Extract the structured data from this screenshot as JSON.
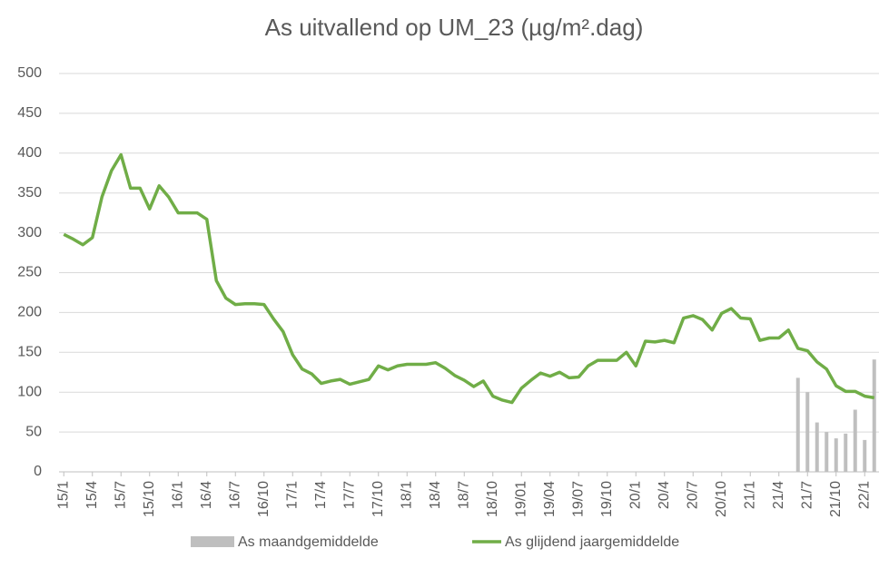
{
  "chart_data": {
    "type": "bar-line",
    "title": "As uitvallend op UM_23 (µg/m².dag)",
    "categories": [
      "15/1",
      null,
      null,
      "15/4",
      null,
      null,
      "15/7",
      null,
      null,
      "15/10",
      null,
      null,
      "16/1",
      null,
      null,
      "16/4",
      null,
      null,
      "16/7",
      null,
      null,
      "16/10",
      null,
      null,
      "17/1",
      null,
      null,
      "17/4",
      null,
      null,
      "17/7",
      null,
      null,
      "17/10",
      null,
      null,
      "18/1",
      null,
      null,
      "18/4",
      null,
      null,
      "18/7",
      null,
      null,
      "18/10",
      null,
      null,
      "19/01",
      null,
      null,
      "19/04",
      null,
      null,
      "19/07",
      null,
      null,
      "19/10",
      null,
      null,
      "20/1",
      null,
      null,
      "20/4",
      null,
      null,
      "20/7",
      null,
      null,
      "20/10",
      null,
      null,
      "21/1",
      null,
      null,
      "21/4",
      null,
      null,
      "21/7",
      null,
      null,
      "21/10",
      null,
      null,
      "22/1",
      null
    ],
    "series": [
      {
        "name": "As maandgemiddelde",
        "kind": "bar",
        "color": "#bfbfbf",
        "values": [
          null,
          null,
          null,
          null,
          null,
          null,
          null,
          null,
          null,
          null,
          null,
          null,
          null,
          null,
          null,
          null,
          null,
          null,
          null,
          null,
          null,
          null,
          null,
          null,
          null,
          null,
          null,
          null,
          null,
          null,
          null,
          null,
          null,
          null,
          null,
          null,
          null,
          null,
          null,
          null,
          null,
          null,
          null,
          null,
          null,
          null,
          null,
          null,
          null,
          null,
          null,
          null,
          null,
          null,
          null,
          null,
          null,
          null,
          null,
          null,
          null,
          null,
          null,
          null,
          null,
          null,
          null,
          null,
          null,
          null,
          null,
          null,
          null,
          null,
          null,
          null,
          null,
          118,
          100,
          62,
          50,
          42,
          48,
          78,
          40,
          141
        ]
      },
      {
        "name": "As glijdend jaargemiddelde",
        "kind": "line",
        "color": "#70ad47",
        "values": [
          298,
          292,
          285,
          294,
          345,
          378,
          398,
          356,
          356,
          330,
          359,
          345,
          325,
          325,
          325,
          317,
          240,
          218,
          210,
          211,
          211,
          210,
          192,
          176,
          147,
          129,
          123,
          111,
          114,
          116,
          110,
          113,
          116,
          133,
          128,
          133,
          135,
          135,
          135,
          137,
          130,
          121,
          115,
          107,
          114,
          95,
          90,
          87,
          105,
          115,
          124,
          120,
          125,
          118,
          119,
          133,
          140,
          140,
          140,
          150,
          133,
          164,
          163,
          165,
          162,
          193,
          196,
          191,
          178,
          199,
          205,
          193,
          192,
          165,
          168,
          168,
          178,
          155,
          152,
          138,
          129,
          108,
          101,
          101,
          95,
          93
        ]
      }
    ],
    "ylim": [
      0,
      500
    ],
    "yticks": [
      0,
      50,
      100,
      150,
      200,
      250,
      300,
      350,
      400,
      450,
      500
    ],
    "grid": true
  }
}
